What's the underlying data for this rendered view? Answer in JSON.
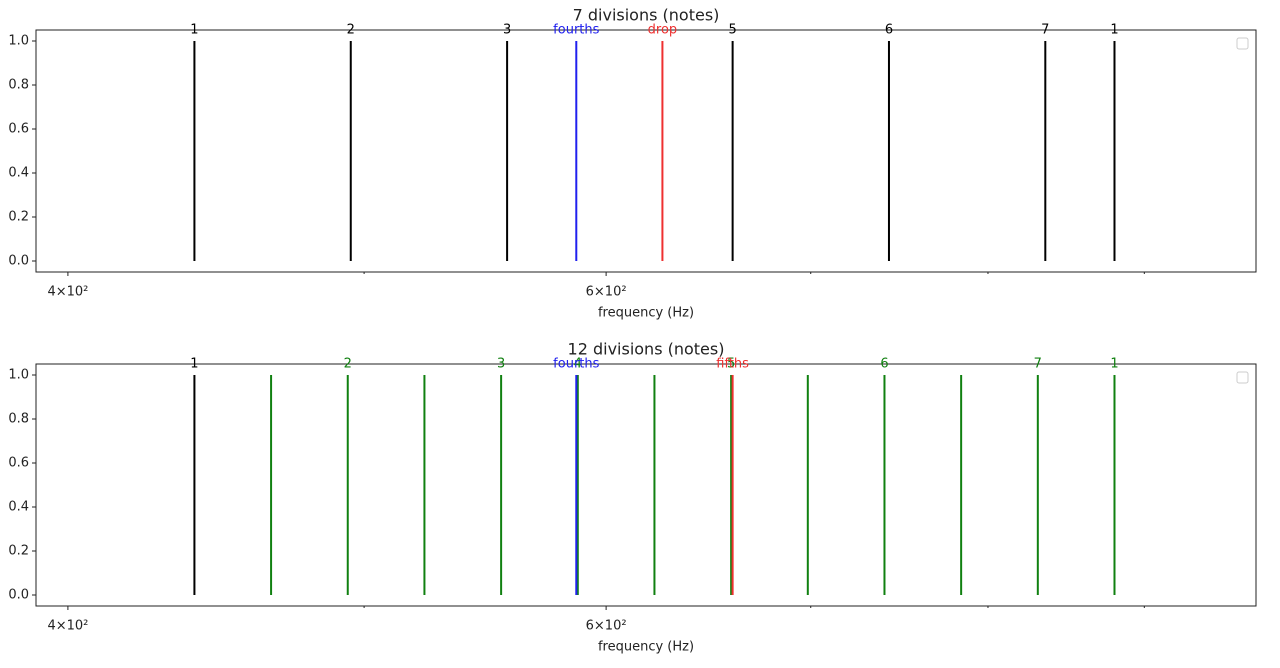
{
  "chart_data": [
    {
      "type": "vlines",
      "title": "7 divisions (notes)",
      "xlabel": "frequency (Hz)",
      "xscale": "log",
      "xlim": [
        390.5,
        979
      ],
      "ylim": [
        -0.05,
        1.05
      ],
      "ymin": 0,
      "ymax": 1,
      "xticks": [
        {
          "value": 400,
          "label": "4×10²"
        },
        {
          "value": 600,
          "label": "6×10²"
        }
      ],
      "xminor": [
        500,
        700,
        800,
        900
      ],
      "yticks": [
        {
          "value": 0,
          "label": "0.0"
        },
        {
          "value": 0.2,
          "label": "0.2"
        },
        {
          "value": 0.4,
          "label": "0.4"
        },
        {
          "value": 0.6,
          "label": "0.6"
        },
        {
          "value": 0.8,
          "label": "0.8"
        },
        {
          "value": 1,
          "label": "1.0"
        }
      ],
      "lines": [
        {
          "x": 440,
          "label": "1",
          "color": "#000000"
        },
        {
          "x": 495,
          "label": "2",
          "color": "#000000"
        },
        {
          "x": 556.875,
          "label": "3",
          "color": "#000000"
        },
        {
          "x": 660,
          "label": "5",
          "color": "#000000"
        },
        {
          "x": 742.5,
          "label": "6",
          "color": "#000000"
        },
        {
          "x": 835.3125,
          "label": "7",
          "color": "#000000"
        },
        {
          "x": 880,
          "label": "1",
          "color": "#000000"
        },
        {
          "x": 586.67,
          "label": "fourths",
          "color": "#2020ee"
        },
        {
          "x": 626,
          "label": "drop",
          "color": "#ee3030"
        }
      ]
    },
    {
      "type": "vlines",
      "title": "12 divisions (notes)",
      "xlabel": "frequency (Hz)",
      "xscale": "log",
      "xlim": [
        390.5,
        979
      ],
      "ylim": [
        -0.05,
        1.05
      ],
      "ymin": 0,
      "ymax": 1,
      "xticks": [
        {
          "value": 400,
          "label": "4×10²"
        },
        {
          "value": 600,
          "label": "6×10²"
        }
      ],
      "xminor": [
        500,
        700,
        800,
        900
      ],
      "yticks": [
        {
          "value": 0,
          "label": "0.0"
        },
        {
          "value": 0.2,
          "label": "0.2"
        },
        {
          "value": 0.4,
          "label": "0.4"
        },
        {
          "value": 0.6,
          "label": "0.6"
        },
        {
          "value": 0.8,
          "label": "0.8"
        },
        {
          "value": 1,
          "label": "1.0"
        }
      ],
      "lines": [
        {
          "x": 440,
          "label": "1",
          "color": "#000000"
        },
        {
          "x": 466.16,
          "label": null,
          "color": "#108010"
        },
        {
          "x": 493.88,
          "label": "2",
          "color": "#108010"
        },
        {
          "x": 523.25,
          "label": null,
          "color": "#108010"
        },
        {
          "x": 554.37,
          "label": "3",
          "color": "#108010"
        },
        {
          "x": 587.33,
          "label": "4",
          "color": "#108010"
        },
        {
          "x": 622.25,
          "label": null,
          "color": "#108010"
        },
        {
          "x": 659.26,
          "label": "5",
          "color": "#108010"
        },
        {
          "x": 698.46,
          "label": null,
          "color": "#108010"
        },
        {
          "x": 739.99,
          "label": "6",
          "color": "#108010"
        },
        {
          "x": 783.99,
          "label": null,
          "color": "#108010"
        },
        {
          "x": 830.61,
          "label": "7",
          "color": "#108010"
        },
        {
          "x": 880,
          "label": "1",
          "color": "#108010"
        },
        {
          "x": 586.67,
          "label": "fourths",
          "color": "#2020ee"
        },
        {
          "x": 660,
          "label": "fifths",
          "color": "#ee3030"
        }
      ]
    }
  ]
}
